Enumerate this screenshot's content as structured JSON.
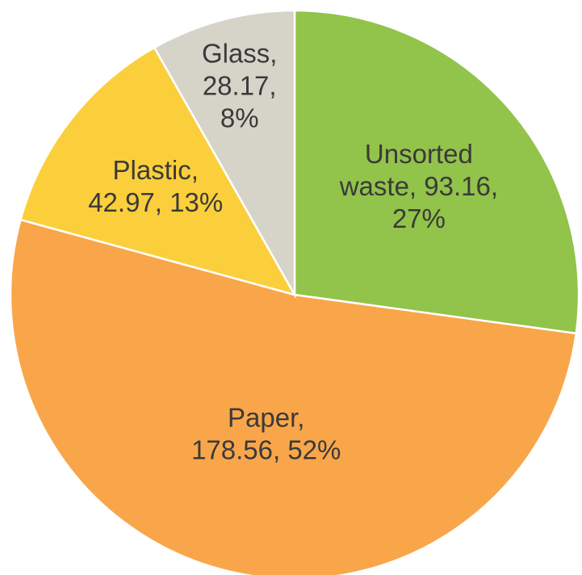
{
  "chart_data": {
    "type": "pie",
    "title": "",
    "start_angle_deg": 0,
    "direction": "clockwise",
    "slices": [
      {
        "name": "Unsorted waste",
        "value": 93.16,
        "percent": "27%",
        "color": "#92c34a",
        "label_lines": [
          "Unsorted",
          "waste, 93.16,",
          "27%"
        ]
      },
      {
        "name": "Paper",
        "value": 178.56,
        "percent": "52%",
        "color": "#f9a64a",
        "label_lines": [
          "Paper,",
          "178.56, 52%"
        ]
      },
      {
        "name": "Plastic",
        "value": 42.97,
        "percent": "13%",
        "color": "#fbcf3c",
        "label_lines": [
          "Plastic,",
          "42.97, 13%"
        ]
      },
      {
        "name": "Glass",
        "value": 28.17,
        "percent": "8%",
        "color": "#d6d3c9",
        "label_lines": [
          "Glass,",
          "28.17,",
          "8%"
        ]
      }
    ]
  }
}
